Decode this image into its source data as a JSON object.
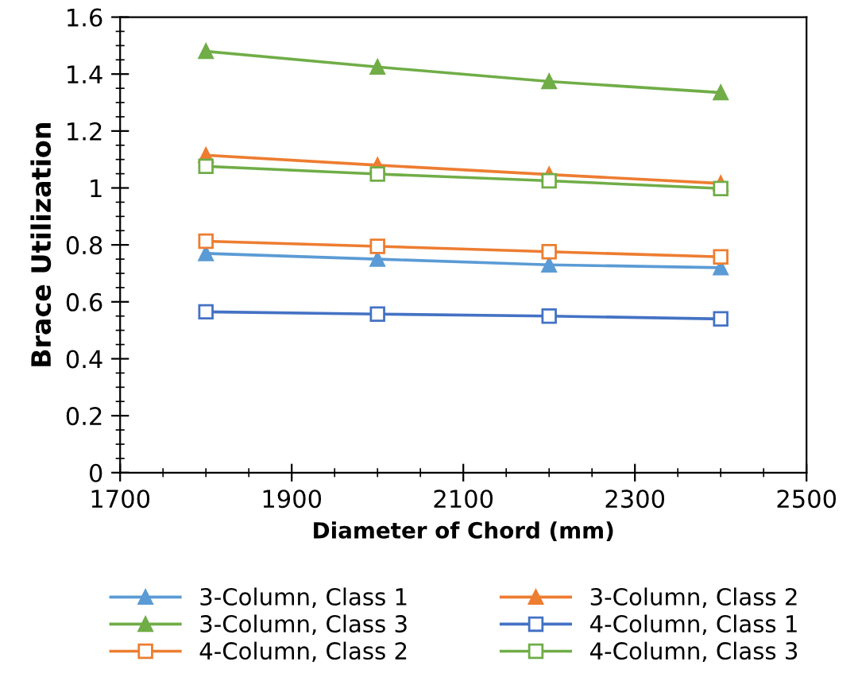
{
  "chart_data": {
    "type": "line",
    "xlabel": "Diameter of Chord (mm)",
    "ylabel": "Brace Utilization",
    "x": [
      1800,
      2000,
      2200,
      2400
    ],
    "series": [
      {
        "name": "3-Column, Class 1",
        "color": "#5b9bd5",
        "marker": "triangle",
        "values": [
          0.77,
          0.75,
          0.73,
          0.72
        ]
      },
      {
        "name": "3-Column, Class 2",
        "color": "#ed7d31",
        "marker": "triangle",
        "values": [
          1.115,
          1.08,
          1.047,
          1.016
        ]
      },
      {
        "name": "3-Column, Class 3",
        "color": "#70ad47",
        "marker": "triangle",
        "values": [
          1.48,
          1.425,
          1.374,
          1.335
        ]
      },
      {
        "name": "4-Column, Class 1",
        "color": "#4472c4",
        "marker": "square",
        "values": [
          0.565,
          0.557,
          0.55,
          0.54
        ]
      },
      {
        "name": "4-Column, Class 2",
        "color": "#ed7d31",
        "marker": "square",
        "values": [
          0.813,
          0.795,
          0.776,
          0.758
        ]
      },
      {
        "name": "4-Column, Class 3",
        "color": "#70ad47",
        "marker": "square",
        "values": [
          1.076,
          1.049,
          1.025,
          0.998
        ]
      }
    ],
    "xlim": [
      1700,
      2500
    ],
    "xticks": [
      1700,
      1900,
      2100,
      2300,
      2500
    ],
    "ylim": [
      0,
      1.6
    ],
    "yticks": [
      0,
      0.2,
      0.4,
      0.6,
      0.8,
      1,
      1.2,
      1.4,
      1.6
    ],
    "grid": false,
    "legend": "bottom",
    "line_style": "solid"
  }
}
